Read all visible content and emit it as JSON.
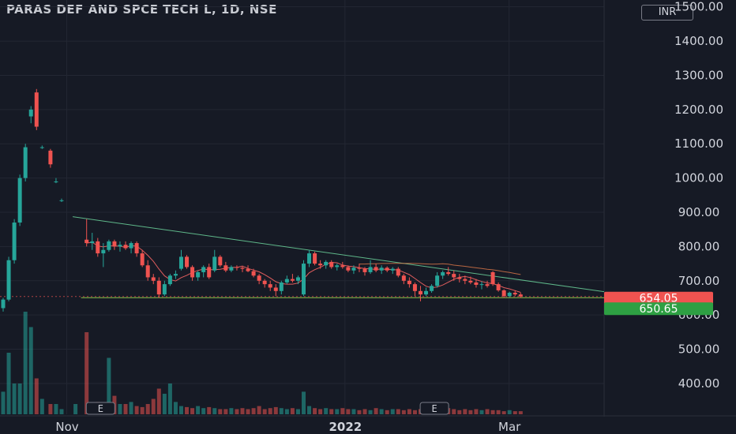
{
  "header": {
    "title": "PARAS DEF AND SPCE TECH L, 1D, NSE",
    "currency": "INR"
  },
  "colors": {
    "background": "#161a25",
    "up": "#26a69a",
    "down": "#ef5350",
    "trendline": "#5fb88a",
    "support_line": "#8bc34a",
    "ma_line": "#e05d5d",
    "upper_ma_line": "#e0794a",
    "price_tag_last": "#f05350",
    "price_tag_support": "#2ea043"
  },
  "chart_data": {
    "type": "candlestick",
    "title": "PARAS DEF AND SPCE TECH L, 1D, NSE",
    "currency": "INR",
    "y_axis": {
      "position": "right",
      "range": [
        310,
        1520
      ],
      "ticks": [
        "1500.00",
        "1400.00",
        "1300.00",
        "1200.00",
        "1100.00",
        "1000.00",
        "900.00",
        "800.00",
        "700.00",
        "600.00",
        "500.00",
        "400.00"
      ],
      "tick_values": [
        1500,
        1400,
        1300,
        1200,
        1100,
        1000,
        900,
        800,
        700,
        600,
        500,
        400
      ]
    },
    "x_axis": {
      "labels": [
        "Nov",
        "2022",
        "Mar"
      ],
      "label_days": [
        23,
        123,
        182
      ],
      "day_range": [
        0,
        216
      ]
    },
    "price_labels": [
      {
        "value": 654.05,
        "text": "654.05",
        "kind": "last"
      },
      {
        "value": 650.65,
        "text": "650.65",
        "kind": "support"
      }
    ],
    "trendline": {
      "from": [
        25,
        887
      ],
      "to": [
        216,
        668
      ]
    },
    "support_line": {
      "from": [
        28,
        650.65
      ],
      "to": [
        216,
        650.65
      ]
    },
    "ohlc_days": [
      0,
      2,
      4,
      6,
      8,
      10,
      12,
      14,
      17,
      19,
      21,
      30,
      32,
      34,
      36,
      38,
      40,
      42,
      44,
      46,
      48,
      50,
      52,
      54,
      56,
      58,
      60,
      62,
      64,
      66,
      68,
      70,
      72,
      74,
      76,
      78,
      80,
      82,
      84,
      86,
      88,
      90,
      92,
      94,
      96,
      98,
      100,
      102,
      104,
      106,
      108,
      110,
      112,
      114,
      116,
      118,
      120,
      122,
      124,
      126,
      128,
      130,
      132,
      134,
      136,
      138,
      140,
      142,
      144,
      146,
      148,
      150,
      152,
      154,
      156,
      158,
      160,
      162,
      164,
      166,
      168,
      170,
      172,
      174,
      176,
      178,
      180,
      182,
      184,
      186
    ],
    "ohlc": [
      [
        620,
        650,
        610,
        645
      ],
      [
        645,
        770,
        640,
        760
      ],
      [
        760,
        880,
        750,
        870
      ],
      [
        870,
        1010,
        860,
        1000
      ],
      [
        1000,
        1100,
        990,
        1090
      ],
      [
        1180,
        1210,
        1160,
        1200
      ],
      [
        1250,
        1260,
        1140,
        1150
      ],
      [
        1090,
        1095,
        1085,
        1090
      ],
      [
        1080,
        1085,
        1030,
        1040
      ],
      [
        990,
        1000,
        985,
        990
      ],
      [
        935,
        940,
        930,
        935
      ],
      [
        820,
        880,
        800,
        810
      ],
      [
        810,
        840,
        790,
        815
      ],
      [
        815,
        825,
        770,
        780
      ],
      [
        780,
        810,
        740,
        790
      ],
      [
        790,
        820,
        785,
        815
      ],
      [
        815,
        820,
        790,
        800
      ],
      [
        800,
        815,
        785,
        805
      ],
      [
        805,
        815,
        790,
        795
      ],
      [
        795,
        815,
        780,
        810
      ],
      [
        810,
        815,
        770,
        780
      ],
      [
        780,
        790,
        740,
        745
      ],
      [
        745,
        760,
        700,
        710
      ],
      [
        710,
        720,
        690,
        700
      ],
      [
        700,
        710,
        650,
        660
      ],
      [
        660,
        700,
        655,
        690
      ],
      [
        690,
        720,
        685,
        715
      ],
      [
        715,
        730,
        705,
        720
      ],
      [
        735,
        790,
        730,
        770
      ],
      [
        770,
        775,
        735,
        740
      ],
      [
        740,
        745,
        700,
        710
      ],
      [
        710,
        730,
        700,
        725
      ],
      [
        725,
        745,
        710,
        740
      ],
      [
        740,
        750,
        705,
        710
      ],
      [
        730,
        790,
        725,
        770
      ],
      [
        770,
        775,
        740,
        745
      ],
      [
        745,
        755,
        725,
        730
      ],
      [
        730,
        745,
        725,
        740
      ],
      [
        740,
        745,
        730,
        738
      ],
      [
        738,
        742,
        725,
        735
      ],
      [
        735,
        745,
        725,
        728
      ],
      [
        728,
        735,
        710,
        715
      ],
      [
        715,
        720,
        690,
        700
      ],
      [
        700,
        705,
        680,
        690
      ],
      [
        690,
        700,
        670,
        680
      ],
      [
        680,
        690,
        655,
        670
      ],
      [
        670,
        700,
        660,
        695
      ],
      [
        695,
        715,
        690,
        705
      ],
      [
        705,
        720,
        695,
        700
      ],
      [
        700,
        715,
        690,
        710
      ],
      [
        660,
        760,
        655,
        750
      ],
      [
        750,
        790,
        740,
        780
      ],
      [
        780,
        785,
        745,
        750
      ],
      [
        750,
        760,
        735,
        745
      ],
      [
        745,
        760,
        735,
        755
      ],
      [
        755,
        760,
        735,
        740
      ],
      [
        740,
        750,
        730,
        745
      ],
      [
        745,
        755,
        735,
        740
      ],
      [
        740,
        745,
        725,
        730
      ],
      [
        730,
        745,
        720,
        738
      ],
      [
        738,
        750,
        725,
        735
      ],
      [
        735,
        740,
        715,
        725
      ],
      [
        725,
        760,
        720,
        740
      ],
      [
        740,
        750,
        725,
        730
      ],
      [
        730,
        745,
        720,
        738
      ],
      [
        738,
        742,
        725,
        730
      ],
      [
        730,
        740,
        720,
        735
      ],
      [
        735,
        740,
        710,
        715
      ],
      [
        715,
        720,
        690,
        700
      ],
      [
        700,
        710,
        680,
        690
      ],
      [
        690,
        695,
        655,
        670
      ],
      [
        670,
        685,
        640,
        660
      ],
      [
        660,
        680,
        655,
        670
      ],
      [
        670,
        690,
        665,
        685
      ],
      [
        685,
        725,
        680,
        715
      ],
      [
        715,
        730,
        705,
        725
      ],
      [
        725,
        740,
        715,
        720
      ],
      [
        720,
        730,
        700,
        710
      ],
      [
        710,
        720,
        695,
        705
      ],
      [
        705,
        715,
        690,
        700
      ],
      [
        700,
        712,
        690,
        695
      ],
      [
        695,
        705,
        680,
        688
      ],
      [
        688,
        698,
        675,
        690
      ],
      [
        690,
        700,
        680,
        685
      ],
      [
        725,
        728,
        685,
        690
      ],
      [
        690,
        695,
        668,
        672
      ],
      [
        672,
        675,
        650,
        655
      ],
      [
        655,
        668,
        652,
        665
      ],
      [
        665,
        672,
        655,
        660
      ],
      [
        660,
        665,
        650,
        654
      ]
    ],
    "volume_days": [
      0,
      2,
      4,
      6,
      8,
      10,
      12,
      14,
      17,
      19,
      21,
      26,
      30,
      32,
      34,
      36,
      38,
      40,
      42,
      44,
      46,
      48,
      50,
      52,
      54,
      56,
      58,
      60,
      62,
      64,
      66,
      68,
      70,
      72,
      74,
      76,
      78,
      80,
      82,
      84,
      86,
      88,
      90,
      92,
      94,
      96,
      98,
      100,
      102,
      104,
      106,
      108,
      110,
      112,
      114,
      116,
      118,
      120,
      122,
      124,
      126,
      128,
      130,
      132,
      134,
      136,
      138,
      140,
      142,
      144,
      146,
      148,
      150,
      152,
      154,
      156,
      158,
      160,
      162,
      164,
      166,
      168,
      170,
      172,
      174,
      176,
      178,
      180,
      182,
      184,
      186
    ],
    "volume": [
      0.22,
      0.6,
      0.3,
      0.3,
      1.0,
      0.85,
      0.35,
      0.15,
      0.1,
      0.1,
      0.05,
      0.1,
      0.8,
      0.1,
      0.12,
      0.1,
      0.55,
      0.18,
      0.1,
      0.1,
      0.12,
      0.08,
      0.07,
      0.1,
      0.15,
      0.25,
      0.2,
      0.3,
      0.12,
      0.08,
      0.07,
      0.06,
      0.08,
      0.06,
      0.07,
      0.06,
      0.05,
      0.05,
      0.06,
      0.05,
      0.06,
      0.05,
      0.06,
      0.08,
      0.05,
      0.06,
      0.07,
      0.06,
      0.05,
      0.06,
      0.05,
      0.22,
      0.08,
      0.06,
      0.05,
      0.06,
      0.05,
      0.05,
      0.06,
      0.05,
      0.05,
      0.04,
      0.05,
      0.04,
      0.06,
      0.05,
      0.04,
      0.05,
      0.05,
      0.04,
      0.05,
      0.04,
      0.05,
      0.04,
      0.05,
      0.06,
      0.08,
      0.06,
      0.05,
      0.04,
      0.05,
      0.04,
      0.05,
      0.04,
      0.05,
      0.04,
      0.04,
      0.03,
      0.04,
      0.03,
      0.03
    ],
    "event_markers": [
      {
        "day": 35,
        "text": "E"
      },
      {
        "day": 155,
        "text": "E"
      }
    ]
  },
  "price_scale": {
    "last_price": "654.05",
    "support_price": "650.65"
  }
}
